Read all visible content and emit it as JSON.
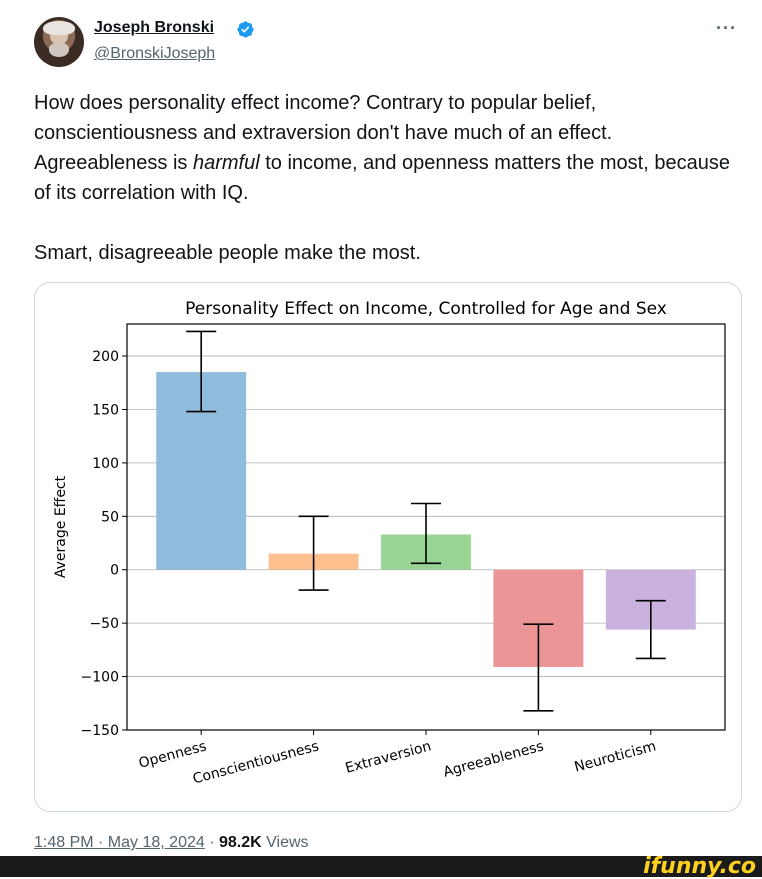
{
  "author": {
    "name": "Joseph Bronski",
    "handle": "@BronskiJoseph",
    "verified": true
  },
  "more_icon": "more-options-icon",
  "tweet": {
    "line1_a": "How does personality effect income? Contrary to popular belief, conscientiousness and extraversion don't have much of an effect. Agreeableness is ",
    "line1_em": "harmful",
    "line1_b": " to income, and openness matters the most, because of its correlation with IQ.",
    "line2": "Smart, disagreeable people make the most."
  },
  "chart_data": {
    "type": "bar",
    "title": "Personality Effect on Income, Controlled for Age and Sex",
    "xlabel": "",
    "ylabel": "Average Effect",
    "ylim": [
      -150,
      230
    ],
    "yticks": [
      200,
      150,
      100,
      50,
      0,
      -50,
      -100,
      -150
    ],
    "ytick_labels": [
      "200",
      "150",
      "100",
      "50",
      "0",
      "−50",
      "−100",
      "−150"
    ],
    "grid": true,
    "categories": [
      "Openness",
      "Conscientiousness",
      "Extraversion",
      "Agreeableness",
      "Neuroticism"
    ],
    "values": [
      185,
      15,
      33,
      -91,
      -56
    ],
    "error_low": [
      148,
      -19,
      6,
      -132,
      -83
    ],
    "error_high": [
      223,
      50,
      62,
      -51,
      -29
    ],
    "colors": [
      "#8fbcdc",
      "#fdc08e",
      "#98d494",
      "#eb9596",
      "#c9b2dd"
    ]
  },
  "meta": {
    "time": "1:48 PM · May 18, 2024",
    "separator": " · ",
    "views_count": "98.2K",
    "views_label": " Views"
  },
  "watermark": "ifunny.co"
}
